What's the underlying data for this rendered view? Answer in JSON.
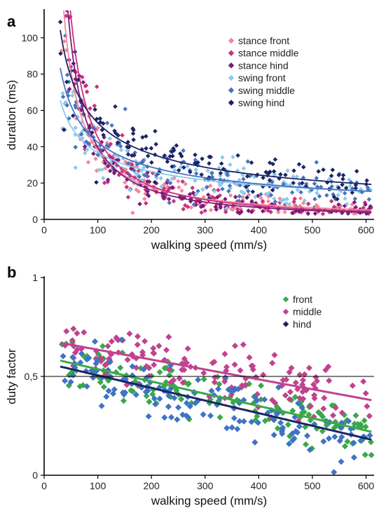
{
  "figure": {
    "panels": [
      {
        "label": "a",
        "chart_data": {
          "type": "scatter",
          "xlabel": "walking speed (mm/s)",
          "ylabel": "duration (ms)",
          "xlim": [
            0,
            615
          ],
          "ylim": [
            0,
            115
          ],
          "xticks": [
            0,
            100,
            200,
            300,
            400,
            500,
            600
          ],
          "yticks": [
            0,
            20,
            40,
            60,
            80,
            100
          ],
          "legend_position": "top-right",
          "fit": "power",
          "series": [
            {
              "name": "stance front",
              "color": "#f08a9b",
              "x_range": [
                30,
                610
              ],
              "fit": {
                "a": 6000,
                "b": -1.1
              }
            },
            {
              "name": "stance middle",
              "color": "#c8327d",
              "x_range": [
                30,
                610
              ],
              "fit": {
                "a": 18000,
                "b": -1.3
              }
            },
            {
              "name": "stance hind",
              "color": "#7b1b79",
              "x_range": [
                30,
                610
              ],
              "fit": {
                "a": 15800,
                "b": -1.3
              }
            },
            {
              "name": "swing front",
              "color": "#8ecae8",
              "x_range": [
                30,
                610
              ],
              "fit": {
                "a": 335,
                "b": -0.48
              }
            },
            {
              "name": "swing middle",
              "color": "#4a73c0",
              "x_range": [
                30,
                610
              ],
              "fit": {
                "a": 560,
                "b": -0.56
              }
            },
            {
              "name": "swing hind",
              "color": "#1c2466",
              "x_range": [
                30,
                610
              ],
              "fit": {
                "a": 700,
                "b": -0.56
              }
            }
          ]
        }
      },
      {
        "label": "b",
        "chart_data": {
          "type": "scatter",
          "xlabel": "walking speed (mm/s)",
          "ylabel": "duty factor",
          "xlim": [
            0,
            615
          ],
          "ylim": [
            0,
            1
          ],
          "xticks": [
            0,
            100,
            200,
            300,
            400,
            500,
            600
          ],
          "yticks": [
            0,
            0.5,
            1
          ],
          "ytick_labels": [
            "0",
            "0,5",
            "1"
          ],
          "reference_line_y": 0.5,
          "legend_position": "top-right",
          "fit": "linear",
          "series": [
            {
              "name": "front",
              "color": "#3aa84a",
              "x_range": [
                30,
                610
              ],
              "fit": {
                "start": [
                  30,
                  0.58
                ],
                "end": [
                  610,
                  0.22
                ]
              }
            },
            {
              "name": "middle",
              "color": "#c0438f",
              "x_range": [
                30,
                610
              ],
              "fit": {
                "start": [
                  30,
                  0.67
                ],
                "end": [
                  610,
                  0.38
                ]
              }
            },
            {
              "name": "hind",
              "color": "#1c2466",
              "marker_color": "#3f73c4",
              "x_range": [
                30,
                610
              ],
              "fit": {
                "start": [
                  30,
                  0.55
                ],
                "end": [
                  610,
                  0.18
                ]
              }
            }
          ]
        }
      }
    ]
  }
}
